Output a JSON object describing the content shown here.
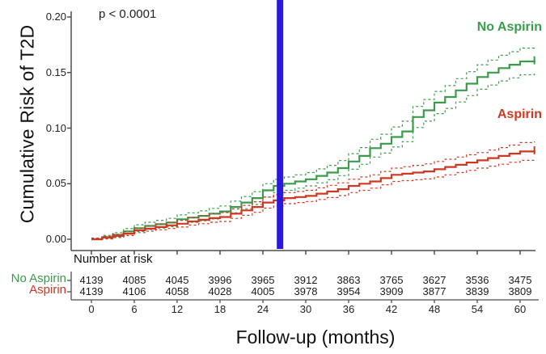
{
  "chart_data": {
    "type": "line",
    "subtype": "cumulative-incidence-step-curves-with-ci",
    "title": "",
    "annotation": "p < 0.0001",
    "xlabel": "Follow-up (months)",
    "ylabel": "Cumulative Risk of T2D",
    "xlim": [
      0,
      62
    ],
    "ylim": [
      0,
      0.2
    ],
    "xticks": [
      0,
      6,
      12,
      18,
      24,
      30,
      36,
      42,
      48,
      54,
      60
    ],
    "yticks": [
      0.0,
      0.05,
      0.1,
      0.15,
      0.2
    ],
    "grid": false,
    "legend_position": "inline-right",
    "vline": {
      "month": 26.4,
      "color": "#2b18dd"
    },
    "axis_color": "#4d4d4d",
    "series": [
      {
        "name": "No Aspirin",
        "color": "#3a9c4b",
        "style": "solid-step-with-dotted-ci",
        "points": [
          [
            0,
            0
          ],
          [
            1.5,
            0.002
          ],
          [
            3,
            0.004
          ],
          [
            4.5,
            0.007
          ],
          [
            6,
            0.01
          ],
          [
            7.5,
            0.012
          ],
          [
            9,
            0.0135
          ],
          [
            10.5,
            0.015
          ],
          [
            12,
            0.018
          ],
          [
            13.5,
            0.0195
          ],
          [
            15,
            0.021
          ],
          [
            16.5,
            0.023
          ],
          [
            18,
            0.025
          ],
          [
            19.5,
            0.029
          ],
          [
            21,
            0.033
          ],
          [
            22.5,
            0.037
          ],
          [
            24,
            0.044
          ],
          [
            25.5,
            0.048
          ],
          [
            27,
            0.05
          ],
          [
            28.5,
            0.052
          ],
          [
            30,
            0.054
          ],
          [
            31.5,
            0.057
          ],
          [
            33,
            0.06
          ],
          [
            34.5,
            0.064
          ],
          [
            36,
            0.07
          ],
          [
            37.5,
            0.075
          ],
          [
            39,
            0.082
          ],
          [
            40.5,
            0.086
          ],
          [
            42,
            0.092
          ],
          [
            43.5,
            0.097
          ],
          [
            45,
            0.11
          ],
          [
            46.5,
            0.116
          ],
          [
            48,
            0.123
          ],
          [
            49.5,
            0.128
          ],
          [
            51,
            0.134
          ],
          [
            52.5,
            0.14
          ],
          [
            54,
            0.146
          ],
          [
            55.5,
            0.15
          ],
          [
            57,
            0.154
          ],
          [
            58.5,
            0.157
          ],
          [
            60,
            0.16
          ],
          [
            62,
            0.161
          ]
        ],
        "ci_delta": [
          [
            0,
            0.001
          ],
          [
            6,
            0.003
          ],
          [
            12,
            0.004
          ],
          [
            18,
            0.005
          ],
          [
            24,
            0.006
          ],
          [
            30,
            0.006
          ],
          [
            36,
            0.007
          ],
          [
            42,
            0.009
          ],
          [
            48,
            0.01
          ],
          [
            54,
            0.011
          ],
          [
            60,
            0.012
          ],
          [
            62,
            0.012
          ]
        ],
        "censor_at_end": true
      },
      {
        "name": "Aspirin",
        "color": "#cf3722",
        "style": "solid-step-with-dotted-ci",
        "points": [
          [
            0,
            0
          ],
          [
            1.5,
            0.0015
          ],
          [
            3,
            0.003
          ],
          [
            4.5,
            0.005
          ],
          [
            6,
            0.008
          ],
          [
            7.5,
            0.0095
          ],
          [
            9,
            0.011
          ],
          [
            10.5,
            0.0125
          ],
          [
            12,
            0.014
          ],
          [
            13.5,
            0.016
          ],
          [
            15,
            0.0175
          ],
          [
            16.5,
            0.019
          ],
          [
            18,
            0.02
          ],
          [
            19.5,
            0.023
          ],
          [
            21,
            0.026
          ],
          [
            22.5,
            0.029
          ],
          [
            24,
            0.033
          ],
          [
            25.5,
            0.035
          ],
          [
            27,
            0.037
          ],
          [
            28.5,
            0.038
          ],
          [
            30,
            0.039
          ],
          [
            31.5,
            0.041
          ],
          [
            33,
            0.043
          ],
          [
            34.5,
            0.045
          ],
          [
            36,
            0.048
          ],
          [
            37.5,
            0.05
          ],
          [
            39,
            0.052
          ],
          [
            40.5,
            0.055
          ],
          [
            42,
            0.058
          ],
          [
            43.5,
            0.059
          ],
          [
            45,
            0.06
          ],
          [
            46.5,
            0.061
          ],
          [
            48,
            0.063
          ],
          [
            49.5,
            0.065
          ],
          [
            51,
            0.067
          ],
          [
            52.5,
            0.069
          ],
          [
            54,
            0.071
          ],
          [
            55.5,
            0.073
          ],
          [
            57,
            0.075
          ],
          [
            58.5,
            0.077
          ],
          [
            60,
            0.079
          ],
          [
            62,
            0.08
          ]
        ],
        "ci_delta": [
          [
            0,
            0.001
          ],
          [
            6,
            0.002
          ],
          [
            12,
            0.003
          ],
          [
            18,
            0.004
          ],
          [
            24,
            0.005
          ],
          [
            30,
            0.005
          ],
          [
            36,
            0.006
          ],
          [
            42,
            0.006
          ],
          [
            48,
            0.007
          ],
          [
            54,
            0.007
          ],
          [
            60,
            0.008
          ],
          [
            62,
            0.008
          ]
        ],
        "censor_at_end": true
      }
    ],
    "risk_table": {
      "title": "Number at risk",
      "months": [
        0,
        6,
        12,
        18,
        24,
        30,
        36,
        42,
        48,
        54,
        60
      ],
      "rows": [
        {
          "label": "No Aspirin",
          "color": "#3a9c4b",
          "counts": [
            4139,
            4085,
            4045,
            3996,
            3965,
            3912,
            3863,
            3765,
            3627,
            3536,
            3475
          ]
        },
        {
          "label": "Aspirin",
          "color": "#cf3722",
          "counts": [
            4139,
            4106,
            4058,
            4028,
            4005,
            3978,
            3954,
            3909,
            3877,
            3839,
            3809
          ]
        }
      ]
    }
  }
}
